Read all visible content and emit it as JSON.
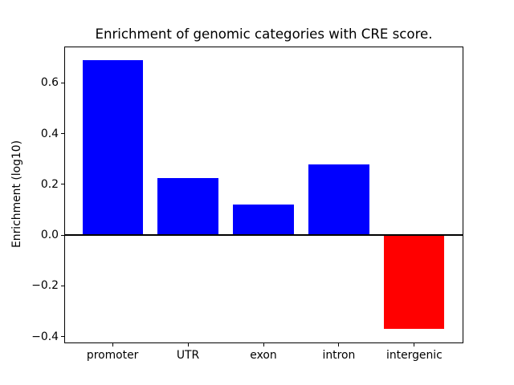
{
  "chart_data": {
    "type": "bar",
    "title": "Enrichment of genomic categories with CRE score.",
    "xlabel": "",
    "ylabel": "Enrichment (log10)",
    "categories": [
      "promoter",
      "UTR",
      "exon",
      "intron",
      "intergenic"
    ],
    "values": [
      0.69,
      0.225,
      0.12,
      0.28,
      -0.37
    ],
    "bar_colors": [
      "#0000ff",
      "#0000ff",
      "#0000ff",
      "#0000ff",
      "#ff0000"
    ],
    "positive_color": "#0000ff",
    "negative_color": "#ff0000",
    "ylim": [
      -0.423,
      0.743
    ],
    "yticks": [
      0.6,
      0.4,
      0.2,
      0.0,
      -0.2,
      -0.4
    ],
    "ytick_labels": [
      "0.6",
      "0.4",
      "0.2",
      "0.0",
      "−0.2",
      "−0.4"
    ],
    "grid": false,
    "legend_position": "none",
    "zero_line": true,
    "zero_line_color": "#000000",
    "axes_color": "#000000",
    "background_color": "#ffffff"
  }
}
